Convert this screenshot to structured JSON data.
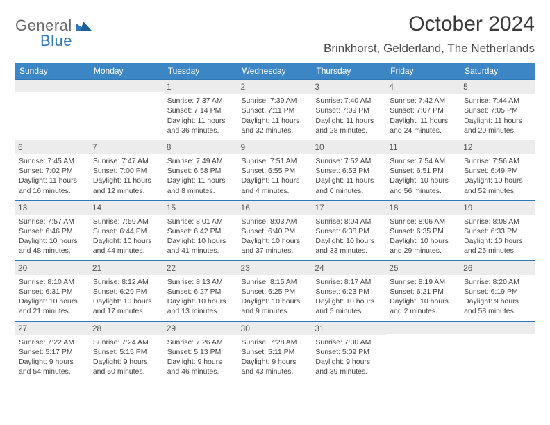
{
  "brand": {
    "part1": "General",
    "part2": "Blue"
  },
  "title": "October 2024",
  "location": "Brinkhorst, Gelderland, The Netherlands",
  "colors": {
    "header_bg": "#3d86c6",
    "accent": "#2f78b7",
    "daynum_bg": "#ececec"
  },
  "day_headers": [
    "Sunday",
    "Monday",
    "Tuesday",
    "Wednesday",
    "Thursday",
    "Friday",
    "Saturday"
  ],
  "weeks": [
    [
      null,
      null,
      {
        "n": "1",
        "sr": "Sunrise: 7:37 AM",
        "ss": "Sunset: 7:14 PM",
        "dl": "Daylight: 11 hours and 36 minutes."
      },
      {
        "n": "2",
        "sr": "Sunrise: 7:39 AM",
        "ss": "Sunset: 7:11 PM",
        "dl": "Daylight: 11 hours and 32 minutes."
      },
      {
        "n": "3",
        "sr": "Sunrise: 7:40 AM",
        "ss": "Sunset: 7:09 PM",
        "dl": "Daylight: 11 hours and 28 minutes."
      },
      {
        "n": "4",
        "sr": "Sunrise: 7:42 AM",
        "ss": "Sunset: 7:07 PM",
        "dl": "Daylight: 11 hours and 24 minutes."
      },
      {
        "n": "5",
        "sr": "Sunrise: 7:44 AM",
        "ss": "Sunset: 7:05 PM",
        "dl": "Daylight: 11 hours and 20 minutes."
      }
    ],
    [
      {
        "n": "6",
        "sr": "Sunrise: 7:45 AM",
        "ss": "Sunset: 7:02 PM",
        "dl": "Daylight: 11 hours and 16 minutes."
      },
      {
        "n": "7",
        "sr": "Sunrise: 7:47 AM",
        "ss": "Sunset: 7:00 PM",
        "dl": "Daylight: 11 hours and 12 minutes."
      },
      {
        "n": "8",
        "sr": "Sunrise: 7:49 AM",
        "ss": "Sunset: 6:58 PM",
        "dl": "Daylight: 11 hours and 8 minutes."
      },
      {
        "n": "9",
        "sr": "Sunrise: 7:51 AM",
        "ss": "Sunset: 6:55 PM",
        "dl": "Daylight: 11 hours and 4 minutes."
      },
      {
        "n": "10",
        "sr": "Sunrise: 7:52 AM",
        "ss": "Sunset: 6:53 PM",
        "dl": "Daylight: 11 hours and 0 minutes."
      },
      {
        "n": "11",
        "sr": "Sunrise: 7:54 AM",
        "ss": "Sunset: 6:51 PM",
        "dl": "Daylight: 10 hours and 56 minutes."
      },
      {
        "n": "12",
        "sr": "Sunrise: 7:56 AM",
        "ss": "Sunset: 6:49 PM",
        "dl": "Daylight: 10 hours and 52 minutes."
      }
    ],
    [
      {
        "n": "13",
        "sr": "Sunrise: 7:57 AM",
        "ss": "Sunset: 6:46 PM",
        "dl": "Daylight: 10 hours and 48 minutes."
      },
      {
        "n": "14",
        "sr": "Sunrise: 7:59 AM",
        "ss": "Sunset: 6:44 PM",
        "dl": "Daylight: 10 hours and 44 minutes."
      },
      {
        "n": "15",
        "sr": "Sunrise: 8:01 AM",
        "ss": "Sunset: 6:42 PM",
        "dl": "Daylight: 10 hours and 41 minutes."
      },
      {
        "n": "16",
        "sr": "Sunrise: 8:03 AM",
        "ss": "Sunset: 6:40 PM",
        "dl": "Daylight: 10 hours and 37 minutes."
      },
      {
        "n": "17",
        "sr": "Sunrise: 8:04 AM",
        "ss": "Sunset: 6:38 PM",
        "dl": "Daylight: 10 hours and 33 minutes."
      },
      {
        "n": "18",
        "sr": "Sunrise: 8:06 AM",
        "ss": "Sunset: 6:35 PM",
        "dl": "Daylight: 10 hours and 29 minutes."
      },
      {
        "n": "19",
        "sr": "Sunrise: 8:08 AM",
        "ss": "Sunset: 6:33 PM",
        "dl": "Daylight: 10 hours and 25 minutes."
      }
    ],
    [
      {
        "n": "20",
        "sr": "Sunrise: 8:10 AM",
        "ss": "Sunset: 6:31 PM",
        "dl": "Daylight: 10 hours and 21 minutes."
      },
      {
        "n": "21",
        "sr": "Sunrise: 8:12 AM",
        "ss": "Sunset: 6:29 PM",
        "dl": "Daylight: 10 hours and 17 minutes."
      },
      {
        "n": "22",
        "sr": "Sunrise: 8:13 AM",
        "ss": "Sunset: 6:27 PM",
        "dl": "Daylight: 10 hours and 13 minutes."
      },
      {
        "n": "23",
        "sr": "Sunrise: 8:15 AM",
        "ss": "Sunset: 6:25 PM",
        "dl": "Daylight: 10 hours and 9 minutes."
      },
      {
        "n": "24",
        "sr": "Sunrise: 8:17 AM",
        "ss": "Sunset: 6:23 PM",
        "dl": "Daylight: 10 hours and 5 minutes."
      },
      {
        "n": "25",
        "sr": "Sunrise: 8:19 AM",
        "ss": "Sunset: 6:21 PM",
        "dl": "Daylight: 10 hours and 2 minutes."
      },
      {
        "n": "26",
        "sr": "Sunrise: 8:20 AM",
        "ss": "Sunset: 6:19 PM",
        "dl": "Daylight: 9 hours and 58 minutes."
      }
    ],
    [
      {
        "n": "27",
        "sr": "Sunrise: 7:22 AM",
        "ss": "Sunset: 5:17 PM",
        "dl": "Daylight: 9 hours and 54 minutes."
      },
      {
        "n": "28",
        "sr": "Sunrise: 7:24 AM",
        "ss": "Sunset: 5:15 PM",
        "dl": "Daylight: 9 hours and 50 minutes."
      },
      {
        "n": "29",
        "sr": "Sunrise: 7:26 AM",
        "ss": "Sunset: 5:13 PM",
        "dl": "Daylight: 9 hours and 46 minutes."
      },
      {
        "n": "30",
        "sr": "Sunrise: 7:28 AM",
        "ss": "Sunset: 5:11 PM",
        "dl": "Daylight: 9 hours and 43 minutes."
      },
      {
        "n": "31",
        "sr": "Sunrise: 7:30 AM",
        "ss": "Sunset: 5:09 PM",
        "dl": "Daylight: 9 hours and 39 minutes."
      },
      null,
      null
    ]
  ]
}
